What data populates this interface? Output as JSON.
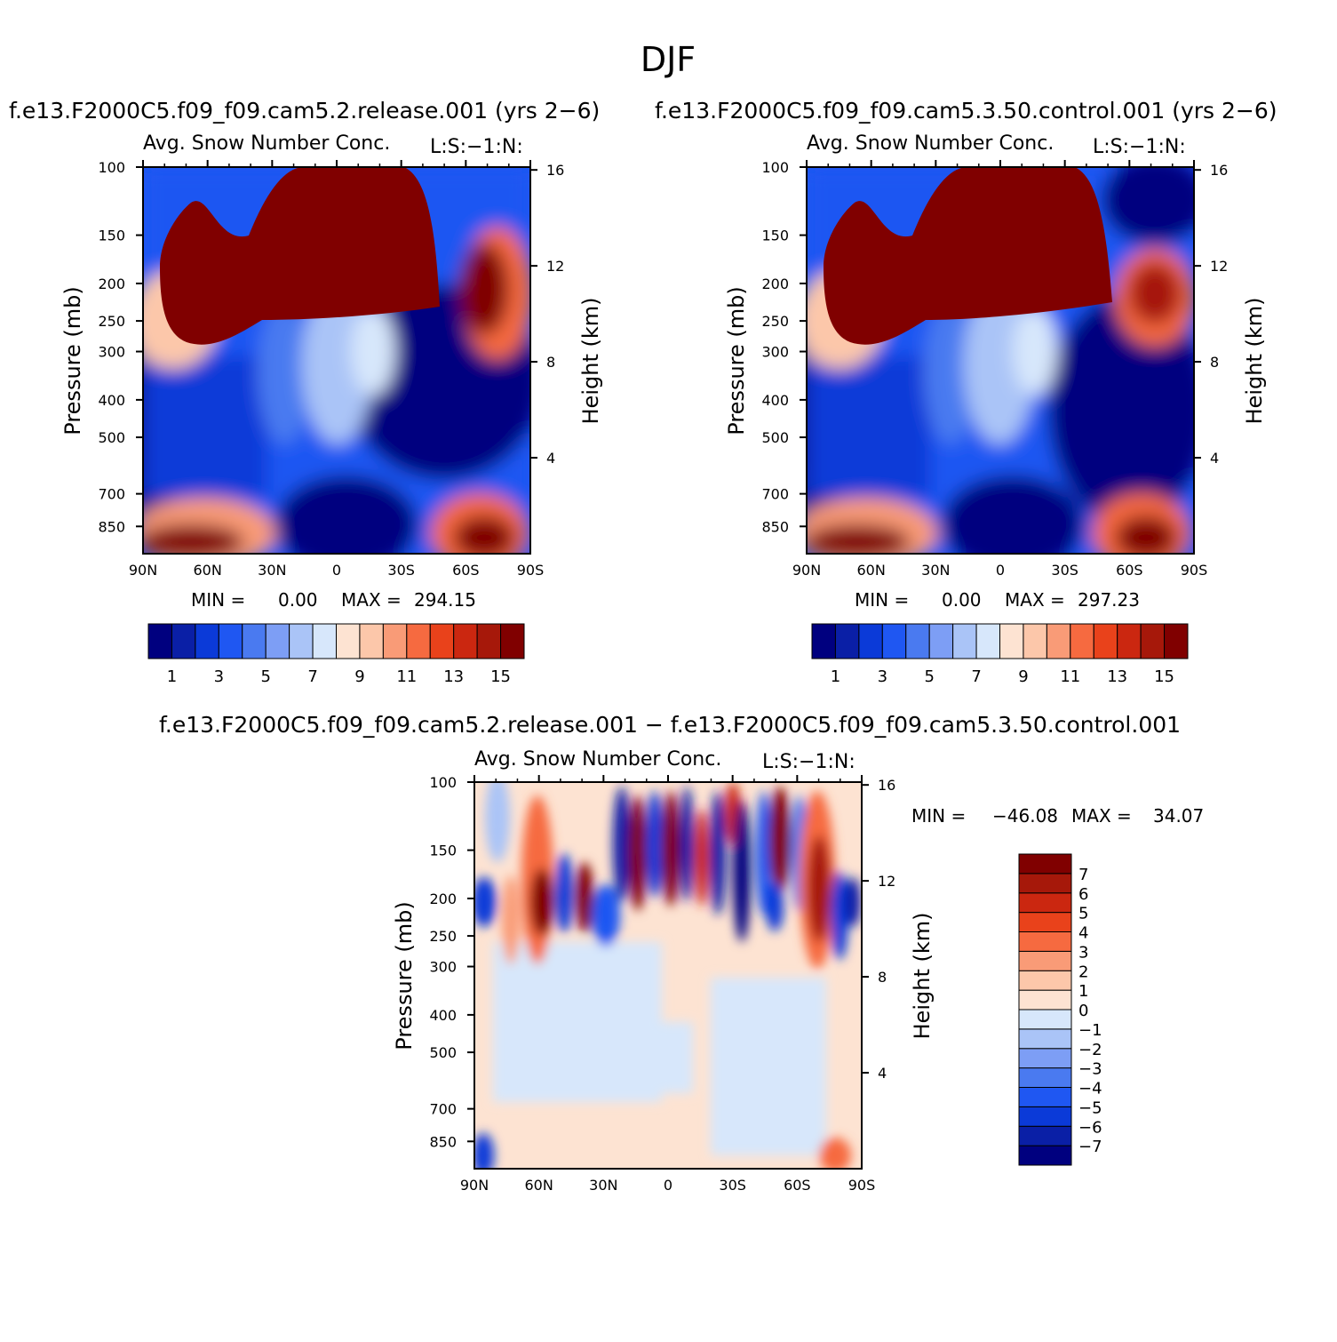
{
  "figure": {
    "title": "DJF"
  },
  "palette": {
    "colors": [
      "#00007f",
      "#0a1fa6",
      "#0b3ad8",
      "#1f57f2",
      "#4a7af0",
      "#7d9ef5",
      "#aac4f7",
      "#d7e7fb",
      "#fde3d2",
      "#fcc7aa",
      "#f99b77",
      "#f66a40",
      "#e9421b",
      "#cb2710",
      "#a6180a",
      "#800000"
    ]
  },
  "chart_data": [
    {
      "type": "heatmap",
      "id": "control_minus",
      "title": "f.e13.F2000C5.f09_f09.cam5.2.release.001  (yrs  2−6)",
      "panel_label": "Avg.  Snow  Number  Conc.",
      "corner_label": "L:S:−1:N:",
      "ylabel": "Pressure  (mb)",
      "ylabel_right": "Height  (km)",
      "x_ticks": [
        "90N",
        "60N",
        "30N",
        "0",
        "30S",
        "60S",
        "90S"
      ],
      "x_range": [
        90,
        -90
      ],
      "y_ticks": [
        "100",
        "150",
        "200",
        "250",
        "300",
        "400",
        "500",
        "700",
        "850"
      ],
      "y_range": [
        100,
        1000
      ],
      "y_scale": "log",
      "y_right_ticks": [
        "16",
        "12",
        "8",
        "4"
      ],
      "min_label": "MIN  =",
      "min_value": "0.00",
      "max_label": "MAX  =",
      "max_value": "294.15",
      "colorbar_labels": [
        "1",
        "3",
        "5",
        "7",
        "9",
        "11",
        "13",
        "15"
      ],
      "colorbar_range": [
        0,
        16
      ]
    },
    {
      "type": "heatmap",
      "id": "control",
      "title": "f.e13.F2000C5.f09_f09.cam5.3.50.control.001  (yrs  2−6)",
      "panel_label": "Avg.  Snow  Number  Conc.",
      "corner_label": "L:S:−1:N:",
      "ylabel": "Pressure  (mb)",
      "ylabel_right": "Height  (km)",
      "x_ticks": [
        "90N",
        "60N",
        "30N",
        "0",
        "30S",
        "60S",
        "90S"
      ],
      "x_range": [
        90,
        -90
      ],
      "y_ticks": [
        "100",
        "150",
        "200",
        "250",
        "300",
        "400",
        "500",
        "700",
        "850"
      ],
      "y_range": [
        100,
        1000
      ],
      "y_scale": "log",
      "y_right_ticks": [
        "16",
        "12",
        "8",
        "4"
      ],
      "min_label": "MIN  =",
      "min_value": "0.00",
      "max_label": "MAX  =",
      "max_value": "297.23",
      "colorbar_labels": [
        "1",
        "3",
        "5",
        "7",
        "9",
        "11",
        "13",
        "15"
      ],
      "colorbar_range": [
        0,
        16
      ]
    },
    {
      "type": "heatmap",
      "id": "difference",
      "title": "f.e13.F2000C5.f09_f09.cam5.2.release.001  −  f.e13.F2000C5.f09_f09.cam5.3.50.control.001",
      "panel_label": "Avg.  Snow  Number  Conc.",
      "corner_label": "L:S:−1:N:",
      "ylabel": "Pressure  (mb)",
      "ylabel_right": "Height  (km)",
      "x_ticks": [
        "90N",
        "60N",
        "30N",
        "0",
        "30S",
        "60S",
        "90S"
      ],
      "x_range": [
        90,
        -90
      ],
      "y_ticks": [
        "100",
        "150",
        "200",
        "250",
        "300",
        "400",
        "500",
        "700",
        "850"
      ],
      "y_range": [
        100,
        1000
      ],
      "y_scale": "log",
      "y_right_ticks": [
        "16",
        "12",
        "8",
        "4"
      ],
      "min_label": "MIN  =",
      "min_value": "−46.08",
      "max_label": "MAX  =",
      "max_value": "34.07",
      "colorbar_labels": [
        "7",
        "6",
        "5",
        "4",
        "3",
        "2",
        "1",
        "0",
        "−1",
        "−2",
        "−3",
        "−4",
        "−5",
        "−6",
        "−7"
      ],
      "colorbar_range": [
        -8,
        8
      ]
    }
  ]
}
